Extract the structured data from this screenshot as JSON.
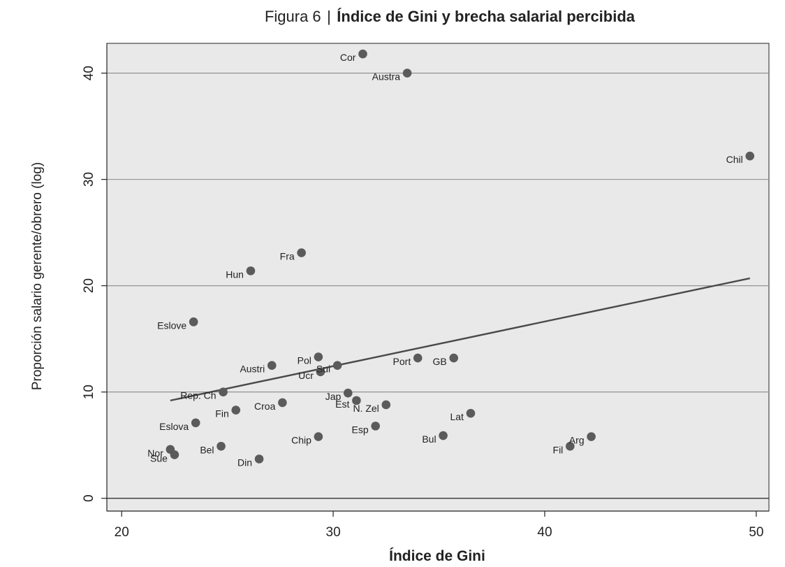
{
  "chart_data": {
    "type": "scatter",
    "title_prefix": "Figura 6",
    "title_separator": "|",
    "title": "Índice de Gini y brecha salarial percibida",
    "xlabel": "Índice de Gini",
    "ylabel": "Proporción salario gerente/obrero (log)",
    "xlim": [
      19.3,
      50.6
    ],
    "ylim": [
      -1.2,
      42.8
    ],
    "xticks": [
      20,
      30,
      40,
      50
    ],
    "yticks": [
      0,
      10,
      20,
      30,
      40
    ],
    "grid": "horizontal",
    "legend": "none",
    "points": [
      {
        "label": "Cor",
        "x": 31.4,
        "y": 41.8
      },
      {
        "label": "Austra",
        "x": 33.5,
        "y": 40.0
      },
      {
        "label": "Chil",
        "x": 49.7,
        "y": 32.2
      },
      {
        "label": "Fra",
        "x": 28.5,
        "y": 23.1
      },
      {
        "label": "Hun",
        "x": 26.1,
        "y": 21.4
      },
      {
        "label": "Eslove",
        "x": 23.4,
        "y": 16.6
      },
      {
        "label": "Austri",
        "x": 27.1,
        "y": 12.5
      },
      {
        "label": "Pol",
        "x": 29.3,
        "y": 13.3
      },
      {
        "label": "Sui",
        "x": 30.2,
        "y": 12.5
      },
      {
        "label": "Ucr",
        "x": 29.4,
        "y": 11.9
      },
      {
        "label": "Port",
        "x": 34.0,
        "y": 13.2
      },
      {
        "label": "GB",
        "x": 35.7,
        "y": 13.2
      },
      {
        "label": "Rep. Ch",
        "x": 24.8,
        "y": 10.0
      },
      {
        "label": "Jap",
        "x": 30.7,
        "y": 9.9
      },
      {
        "label": "Est",
        "x": 31.1,
        "y": 9.2
      },
      {
        "label": "N. Zel",
        "x": 32.5,
        "y": 8.8
      },
      {
        "label": "Croa",
        "x": 27.6,
        "y": 9.0
      },
      {
        "label": "Fin",
        "x": 25.4,
        "y": 8.3
      },
      {
        "label": "Lat",
        "x": 36.5,
        "y": 8.0
      },
      {
        "label": "Eslova",
        "x": 23.5,
        "y": 7.1
      },
      {
        "label": "Esp",
        "x": 32.0,
        "y": 6.8
      },
      {
        "label": "Bul",
        "x": 35.2,
        "y": 5.9
      },
      {
        "label": "Chip",
        "x": 29.3,
        "y": 5.8
      },
      {
        "label": "Arg",
        "x": 42.2,
        "y": 5.8
      },
      {
        "label": "Fil",
        "x": 41.2,
        "y": 4.9
      },
      {
        "label": "Bel",
        "x": 24.7,
        "y": 4.9
      },
      {
        "label": "Nor",
        "x": 22.3,
        "y": 4.6
      },
      {
        "label": "Sue",
        "x": 22.5,
        "y": 4.1
      },
      {
        "label": "Din",
        "x": 26.5,
        "y": 3.7
      }
    ],
    "trend_line": {
      "x": [
        22.3,
        49.7
      ],
      "y": [
        9.2,
        20.7
      ]
    },
    "colors": {
      "plot_background": "#e9e9e9",
      "grid": "#8a8a8a",
      "zero_line": "#222222",
      "point": "#5b5b5b",
      "trend_line": "#4a4a4a",
      "text": "#222222"
    }
  }
}
